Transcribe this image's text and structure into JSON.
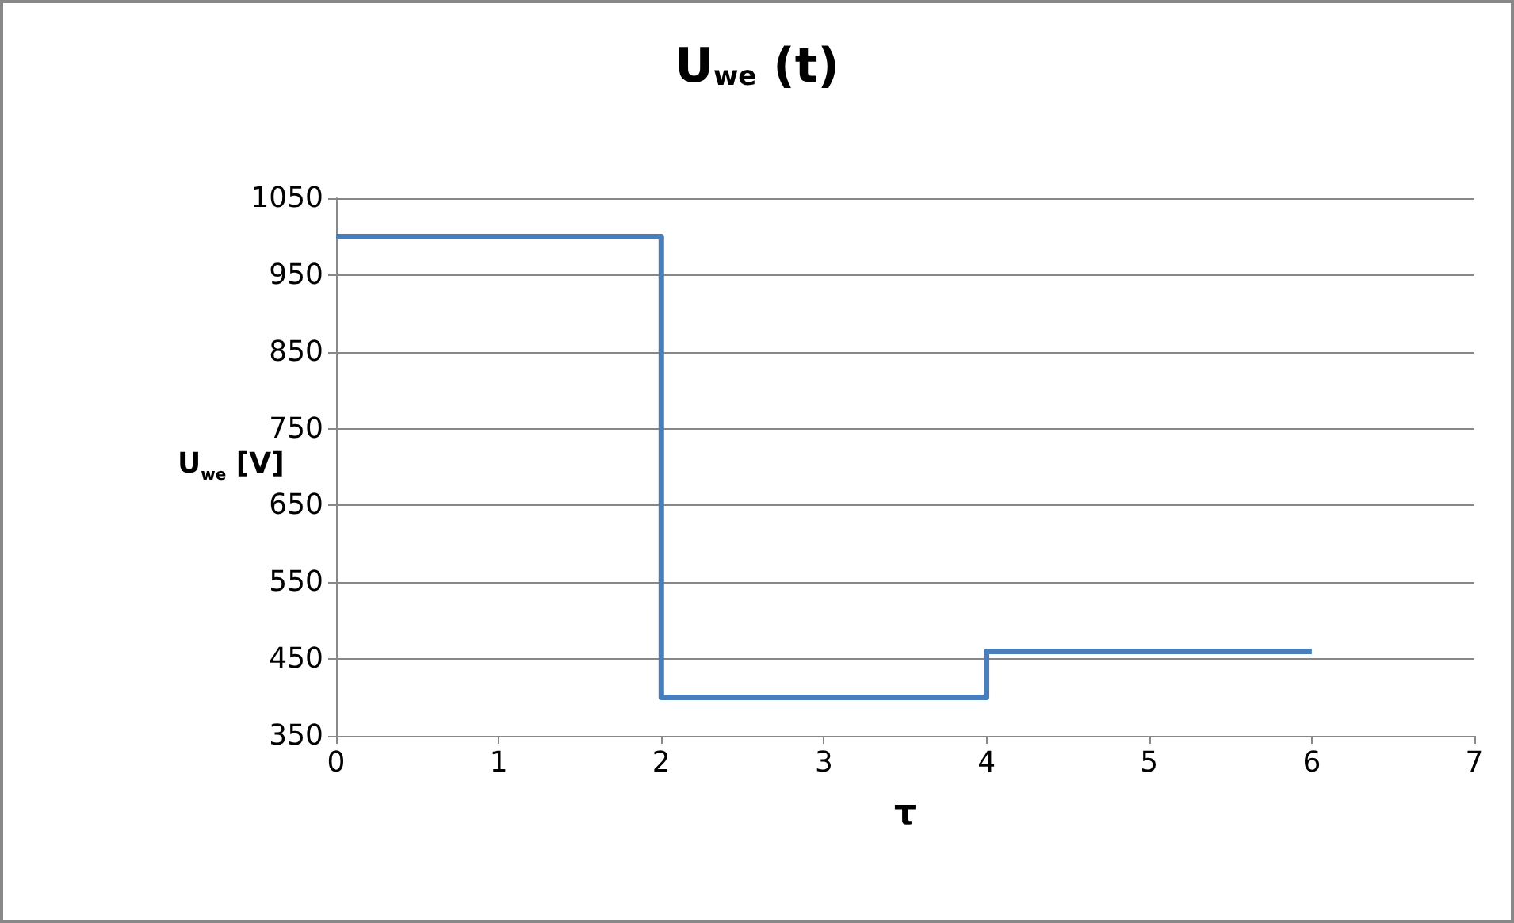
{
  "chart_data": {
    "type": "step",
    "title": "U$_{we}$ (t)",
    "xlabel": "τ",
    "ylabel": "U$_{we}$ [V]",
    "x": [
      0,
      2,
      4,
      6
    ],
    "series": [
      {
        "color": "#4a7ebb",
        "values": [
          1000,
          400,
          460,
          460
        ]
      }
    ],
    "xlim": [
      0,
      7
    ],
    "xticks": [
      0,
      1,
      2,
      3,
      4,
      5,
      6,
      7
    ],
    "ylim": [
      350,
      1050
    ],
    "yticks": [
      350,
      450,
      550,
      650,
      750,
      850,
      950,
      1050
    ],
    "grid": "y",
    "marker": "none",
    "line_style": "solid"
  }
}
